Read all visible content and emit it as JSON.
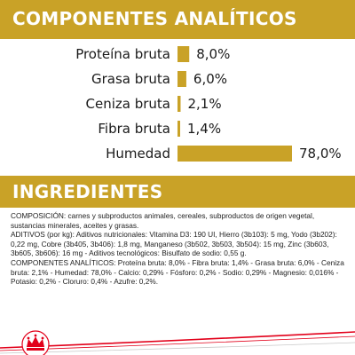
{
  "analytic_header": "COMPONENTES ANALÍTICOS",
  "ingredients_header": "INGREDIENTES",
  "chart_data": {
    "type": "bar",
    "orientation": "horizontal",
    "categories": [
      "Proteína bruta",
      "Grasa bruta",
      "Ceniza bruta",
      "Fibra bruta",
      "Humedad"
    ],
    "values": [
      8.0,
      6.0,
      2.1,
      1.4,
      78.0
    ],
    "value_labels": [
      "8,0%",
      "6,0%",
      "2,1%",
      "1,4%",
      "78,0%"
    ],
    "xlim": [
      0,
      78
    ],
    "bar_color": "#c9a227"
  },
  "ingredients_text": [
    "COMPOSICIÓN: carnes y subproductos animales, cereales, subproductos de origen vegetal, sustancias minerales, aceites y grasas.",
    "ADITIVOS (por kg): Aditivos nutricionales: Vitamina D3: 190 UI, Hierro (3b103): 5 mg, Yodo (3b202): 0,22 mg, Cobre (3b405, 3b406): 1,8 mg, Manganeso (3b502, 3b503, 3b504): 15 mg, Zinc (3b603, 3b605, 3b606): 16 mg - Aditivos tecnológicos: Bisulfato de sodio: 0,55 g.",
    "COMPONENTES ANALÍTICOS: Proteína bruta: 8,0% - Fibra bruta: 1,4% - Grasa bruta: 6,0% - Ceniza bruta: 2,1% - Humedad: 78,0% - Calcio: 0,29% - Fósforo: 0,2% - Sodio: 0,29% - Magnesio: 0,016% - Potasio: 0,2% - Cloruro: 0,4% - Azufre: 0,2%."
  ],
  "colors": {
    "gold": "#c9a227",
    "red": "#e2001a"
  },
  "logo_icon": "royal-canin-crown-icon"
}
